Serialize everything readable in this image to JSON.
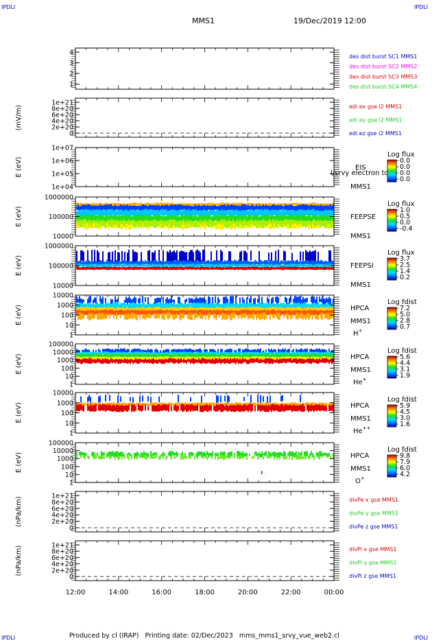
{
  "header": {
    "corner_label": "IPDLI",
    "spacecraft": "MMS1",
    "datetime": "19/Dec/2019 12:00"
  },
  "footer": {
    "text": "Produced by cl (IRAP)   Printing date: 02/Dec/2023   mms_mms1_srvy_vue_web2.cl"
  },
  "x_axis": {
    "ticks": [
      "12:00",
      "14:00",
      "16:00",
      "18:00",
      "20:00",
      "22:00",
      "00:00"
    ]
  },
  "colors": {
    "red": "#d80000",
    "green": "#22cc22",
    "blue": "#0000c8",
    "magenta": "#e000e0"
  },
  "chart_data": [
    {
      "type": "line",
      "id": "des_dist",
      "ylabel": "",
      "yticks": [
        "4",
        "3",
        "2",
        "1"
      ],
      "legend": [
        {
          "label": "des dist burst SC1 MMS1",
          "color": "#0000c8"
        },
        {
          "label": "des dist burst SC2 MMS2",
          "color": "#e000e0"
        },
        {
          "label": "des dist burst SC3 MMS3",
          "color": "#d80000"
        },
        {
          "label": "des dist burst SC4 MMS4",
          "color": "#22cc22"
        }
      ]
    },
    {
      "type": "line",
      "id": "edi_e",
      "ylabel": "(mV/m)",
      "yticks": [
        "1e+21",
        "8e+20",
        "6e+20",
        "4e+20",
        "2e+20",
        "0"
      ],
      "legend": [
        {
          "label": "edi ex gse l2 MMS1",
          "color": "#d80000"
        },
        {
          "label": "edi ey gse l2 MMS1",
          "color": "#22cc22"
        },
        {
          "label": "edi ez gse l2 MMS1",
          "color": "#0000c8"
        }
      ]
    },
    {
      "type": "heatmap",
      "id": "eis",
      "ylabel": "E (eV)",
      "yticks": [
        "1e+07",
        "1e+06",
        "1e+05",
        "1e+04"
      ],
      "side_labels": [
        "EIS",
        "MMS1"
      ],
      "overlay_text": "l/srvy electron to",
      "colorbar": {
        "title": "Log flux",
        "ticks": [
          "0.0",
          "0.0",
          "0.0",
          "0.0"
        ]
      }
    },
    {
      "type": "heatmap",
      "id": "feepse",
      "ylabel": "E (eV)",
      "yticks": [
        "1000000",
        "100000",
        "10000"
      ],
      "side_labels": [
        "FEEPSE",
        "MMS1"
      ],
      "colorbar": {
        "title": "Log flux",
        "ticks": [
          "1.0",
          "0.5",
          "0.0",
          "-0.4"
        ]
      }
    },
    {
      "type": "heatmap",
      "id": "feepsi",
      "ylabel": "E (eV)",
      "yticks": [
        "1000000",
        "100000",
        "10000"
      ],
      "side_labels": [
        "FEEPSI",
        "MMS1"
      ],
      "colorbar": {
        "title": "Log flux",
        "ticks": [
          "3.7",
          "2.5",
          "1.4",
          "0.2"
        ]
      }
    },
    {
      "type": "heatmap",
      "id": "hpca_h",
      "ylabel": "E (eV)",
      "yticks": [
        "10000",
        "1000",
        "100",
        "10",
        "1"
      ],
      "side_labels": [
        "HPCA",
        "MMS1"
      ],
      "species": "H",
      "species_sup": "+",
      "colorbar": {
        "title": "Log fdist",
        "ticks": [
          "7.2",
          "5.0",
          "2.8",
          "0.7"
        ]
      }
    },
    {
      "type": "heatmap",
      "id": "hpca_he",
      "ylabel": "E (eV)",
      "yticks": [
        "100000",
        "10000",
        "1000",
        "100",
        "10",
        "1"
      ],
      "side_labels": [
        "HPCA",
        "MMS1"
      ],
      "species": "He",
      "species_sup": "+",
      "colorbar": {
        "title": "Log fdist",
        "ticks": [
          "5.6",
          "4.4",
          "3.1",
          "1.9"
        ]
      }
    },
    {
      "type": "heatmap",
      "id": "hpca_he2",
      "ylabel": "E (eV)",
      "yticks": [
        "10000",
        "1000",
        "100",
        "10",
        "1"
      ],
      "side_labels": [
        "HPCA",
        "MMS1"
      ],
      "species": "He",
      "species_sup": "++",
      "colorbar": {
        "title": "Log fdist",
        "ticks": [
          "5.9",
          "4.5",
          "3.0",
          "1.6"
        ]
      }
    },
    {
      "type": "heatmap",
      "id": "hpca_o",
      "ylabel": "E (eV)",
      "yticks": [
        "100000",
        "10000",
        "1000",
        "100",
        "10",
        "1"
      ],
      "side_labels": [
        "HPCA",
        "MMS1"
      ],
      "species": "O",
      "species_sup": "+",
      "colorbar": {
        "title": "Log fdist",
        "ticks": [
          "9.8",
          "7.9",
          "6.0",
          "4.2"
        ]
      }
    },
    {
      "type": "line",
      "id": "divpe",
      "ylabel": "(nPa/km)",
      "yticks": [
        "1e+21",
        "8e+20",
        "6e+20",
        "4e+20",
        "2e+20",
        "0"
      ],
      "legend": [
        {
          "label": "divPe x gse MMS1",
          "color": "#d80000"
        },
        {
          "label": "divPe y gse MMS1",
          "color": "#22cc22"
        },
        {
          "label": "divPe z gse MMS1",
          "color": "#0000c8"
        }
      ]
    },
    {
      "type": "line",
      "id": "divpi",
      "ylabel": "(nPa/km)",
      "yticks": [
        "1e+21",
        "8e+20",
        "6e+20",
        "4e+20",
        "2e+20",
        "0"
      ],
      "legend": [
        {
          "label": "divPi x gse MMS1",
          "color": "#d80000"
        },
        {
          "label": "divPi y gse MMS1",
          "color": "#22cc22"
        },
        {
          "label": "divPi z gse MMS1",
          "color": "#0000c8"
        }
      ]
    }
  ]
}
